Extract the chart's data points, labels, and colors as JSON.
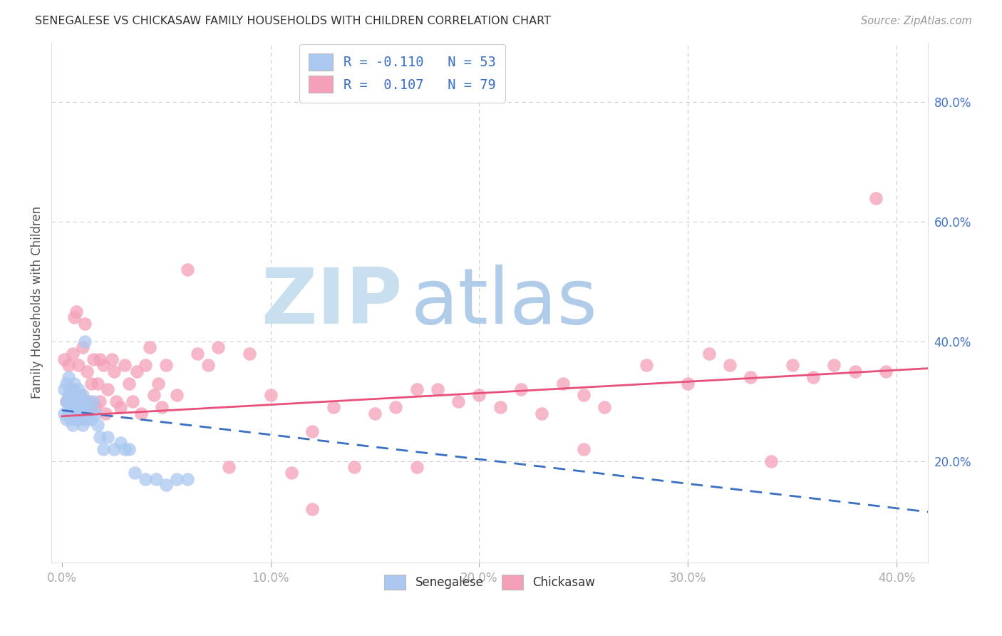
{
  "title": "SENEGALESE VS CHICKASAW FAMILY HOUSEHOLDS WITH CHILDREN CORRELATION CHART",
  "source": "Source: ZipAtlas.com",
  "xlabel_ticks": [
    "0.0%",
    "10.0%",
    "20.0%",
    "30.0%",
    "40.0%"
  ],
  "xlabel_vals": [
    0.0,
    0.1,
    0.2,
    0.3,
    0.4
  ],
  "ylabel_ticks": [
    "20.0%",
    "40.0%",
    "60.0%",
    "80.0%"
  ],
  "ylabel_vals": [
    0.2,
    0.4,
    0.6,
    0.8
  ],
  "xlim": [
    -0.005,
    0.415
  ],
  "ylim": [
    0.03,
    0.9
  ],
  "senegalese_color": "#aac8f0",
  "chickasaw_color": "#f4a0b8",
  "senegalese_line_color": "#3a6fc4",
  "chickasaw_line_color": "#e8507a",
  "watermark_zip_color": "#c8dff0",
  "watermark_atlas_color": "#b0cce8",
  "legend_label1": "R = -0.110   N = 53",
  "legend_label2": "R =  0.107   N = 79",
  "bottom_label1": "Senegalese",
  "bottom_label2": "Chickasaw",
  "senegalese_x": [
    0.001,
    0.001,
    0.002,
    0.002,
    0.002,
    0.003,
    0.003,
    0.003,
    0.003,
    0.004,
    0.004,
    0.004,
    0.004,
    0.005,
    0.005,
    0.005,
    0.006,
    0.006,
    0.006,
    0.007,
    0.007,
    0.007,
    0.007,
    0.008,
    0.008,
    0.008,
    0.009,
    0.009,
    0.01,
    0.01,
    0.01,
    0.011,
    0.011,
    0.012,
    0.012,
    0.013,
    0.014,
    0.015,
    0.016,
    0.017,
    0.018,
    0.02,
    0.022,
    0.025,
    0.028,
    0.03,
    0.032,
    0.035,
    0.04,
    0.045,
    0.05,
    0.055,
    0.06
  ],
  "senegalese_y": [
    0.28,
    0.32,
    0.3,
    0.27,
    0.33,
    0.3,
    0.28,
    0.31,
    0.34,
    0.27,
    0.3,
    0.29,
    0.32,
    0.29,
    0.31,
    0.26,
    0.3,
    0.28,
    0.33,
    0.29,
    0.31,
    0.27,
    0.3,
    0.31,
    0.28,
    0.32,
    0.27,
    0.3,
    0.29,
    0.26,
    0.31,
    0.4,
    0.28,
    0.3,
    0.27,
    0.29,
    0.27,
    0.3,
    0.28,
    0.26,
    0.24,
    0.22,
    0.24,
    0.22,
    0.23,
    0.22,
    0.22,
    0.18,
    0.17,
    0.17,
    0.16,
    0.17,
    0.17
  ],
  "chickasaw_x": [
    0.001,
    0.002,
    0.003,
    0.004,
    0.005,
    0.005,
    0.006,
    0.007,
    0.008,
    0.008,
    0.009,
    0.01,
    0.011,
    0.012,
    0.013,
    0.013,
    0.014,
    0.015,
    0.016,
    0.017,
    0.018,
    0.018,
    0.02,
    0.021,
    0.022,
    0.024,
    0.025,
    0.026,
    0.028,
    0.03,
    0.032,
    0.034,
    0.036,
    0.038,
    0.04,
    0.042,
    0.044,
    0.046,
    0.048,
    0.05,
    0.055,
    0.06,
    0.065,
    0.07,
    0.075,
    0.08,
    0.09,
    0.1,
    0.11,
    0.12,
    0.13,
    0.14,
    0.15,
    0.16,
    0.17,
    0.18,
    0.19,
    0.2,
    0.21,
    0.22,
    0.23,
    0.24,
    0.25,
    0.26,
    0.28,
    0.3,
    0.31,
    0.32,
    0.33,
    0.34,
    0.35,
    0.36,
    0.37,
    0.38,
    0.39,
    0.395,
    0.25,
    0.17,
    0.12
  ],
  "chickasaw_y": [
    0.37,
    0.3,
    0.36,
    0.28,
    0.38,
    0.32,
    0.44,
    0.45,
    0.36,
    0.3,
    0.31,
    0.39,
    0.43,
    0.35,
    0.3,
    0.29,
    0.33,
    0.37,
    0.29,
    0.33,
    0.37,
    0.3,
    0.36,
    0.28,
    0.32,
    0.37,
    0.35,
    0.3,
    0.29,
    0.36,
    0.33,
    0.3,
    0.35,
    0.28,
    0.36,
    0.39,
    0.31,
    0.33,
    0.29,
    0.36,
    0.31,
    0.52,
    0.38,
    0.36,
    0.39,
    0.19,
    0.38,
    0.31,
    0.18,
    0.25,
    0.29,
    0.19,
    0.28,
    0.29,
    0.32,
    0.32,
    0.3,
    0.31,
    0.29,
    0.32,
    0.28,
    0.33,
    0.31,
    0.29,
    0.36,
    0.33,
    0.38,
    0.36,
    0.34,
    0.2,
    0.36,
    0.34,
    0.36,
    0.35,
    0.64,
    0.35,
    0.22,
    0.19,
    0.12
  ],
  "sen_line_x0": 0.0,
  "sen_line_x1": 0.415,
  "sen_line_y0": 0.285,
  "sen_line_y1": 0.115,
  "chick_line_x0": 0.0,
  "chick_line_x1": 0.415,
  "chick_line_y0": 0.275,
  "chick_line_y1": 0.355
}
